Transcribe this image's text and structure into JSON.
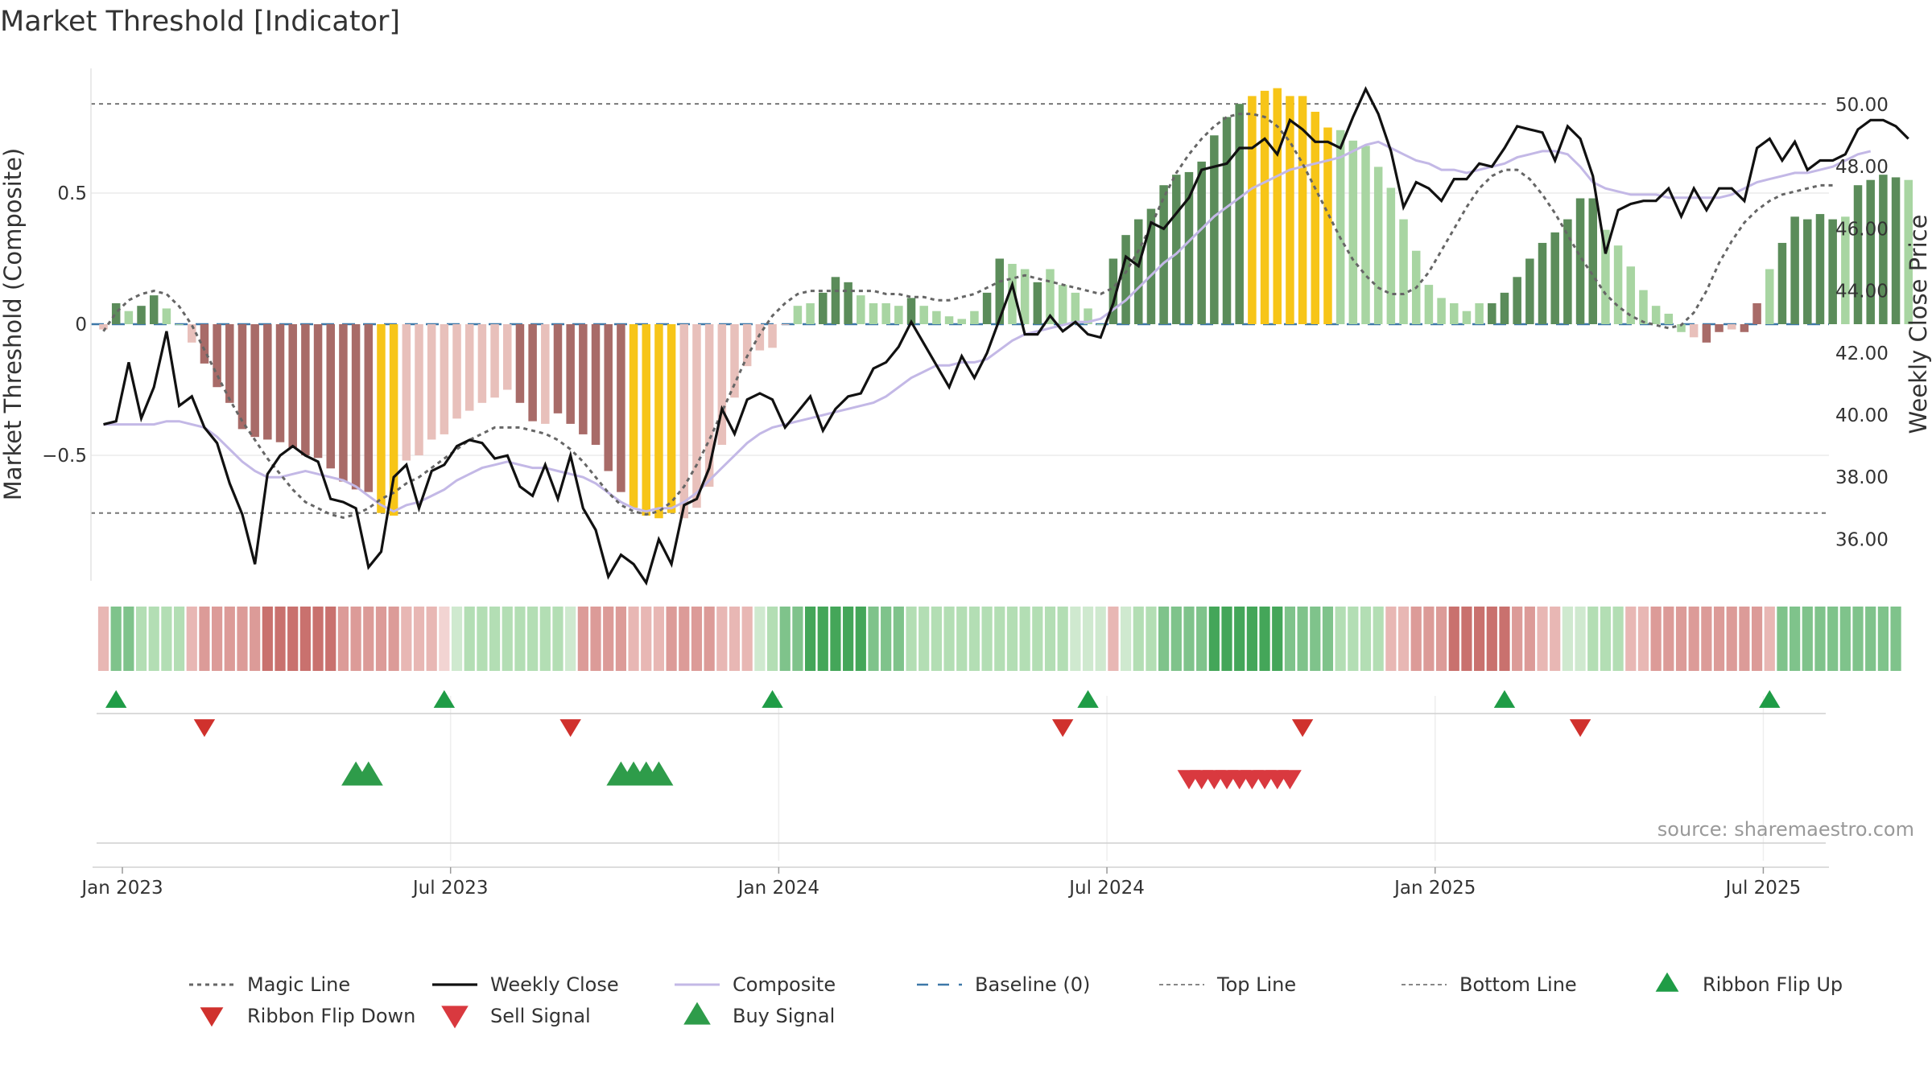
{
  "title": "Market Threshold [Indicator]",
  "source": "source: sharemaestro.com",
  "colors": {
    "strong_green": "#5b8c5a",
    "light_green": "#a8d5a2",
    "strong_red": "#a86b68",
    "light_red": "#e8c0bb",
    "yellow": "#f7c518",
    "weekly_close": "#111111",
    "composite": "#c3b8e6",
    "magic": "#666666",
    "baseline": "#3d78a8",
    "buy": "#2e9c4a",
    "sell": "#d9393f",
    "flip_up": "#1f9c46",
    "flip_down": "#d0312d"
  },
  "chart_data": {
    "type": "bar",
    "title": "Market Threshold [Indicator]",
    "ylabel_left": "Market Threshold (Composite)",
    "ylabel_right": "Weekly Close Price",
    "ylim_left": [
      -1.0,
      1.0
    ],
    "ylim_right": [
      34.4,
      51.8
    ],
    "left_ticks": [
      {
        "v": 0.5,
        "label": "0.5"
      },
      {
        "v": 0,
        "label": "0"
      },
      {
        "v": -0.5,
        "label": "−0.5"
      }
    ],
    "right_ticks": [
      {
        "v": 50,
        "label": "50.00"
      },
      {
        "v": 48,
        "label": "48.00"
      },
      {
        "v": 46,
        "label": "46.00"
      },
      {
        "v": 44,
        "label": "44.00"
      },
      {
        "v": 42,
        "label": "42.00"
      },
      {
        "v": 40,
        "label": "40.00"
      },
      {
        "v": 38,
        "label": "38.00"
      },
      {
        "v": 36,
        "label": "36.00"
      }
    ],
    "x_ticks": [
      {
        "i": 1.5,
        "label": "Jan 2023"
      },
      {
        "i": 27.5,
        "label": "Jul 2023"
      },
      {
        "i": 53.5,
        "label": "Jan 2024"
      },
      {
        "i": 79.5,
        "label": "Jul 2024"
      },
      {
        "i": 105.5,
        "label": "Jan 2025"
      },
      {
        "i": 131.5,
        "label": "Jul 2025"
      }
    ],
    "top_line": 0.84,
    "bottom_line": -0.72,
    "composite_bars": [
      -0.02,
      0.08,
      0.05,
      0.07,
      0.11,
      0.06,
      0.0,
      -0.07,
      -0.15,
      -0.24,
      -0.3,
      -0.4,
      -0.43,
      -0.44,
      -0.45,
      -0.47,
      -0.5,
      -0.51,
      -0.55,
      -0.6,
      -0.63,
      -0.64,
      -0.72,
      -0.73,
      -0.52,
      -0.5,
      -0.44,
      -0.42,
      -0.36,
      -0.33,
      -0.3,
      -0.28,
      -0.25,
      -0.3,
      -0.37,
      -0.38,
      -0.34,
      -0.38,
      -0.42,
      -0.46,
      -0.56,
      -0.64,
      -0.7,
      -0.73,
      -0.74,
      -0.72,
      -0.74,
      -0.7,
      -0.62,
      -0.46,
      -0.28,
      -0.16,
      -0.1,
      -0.09,
      0.0,
      0.07,
      0.08,
      0.12,
      0.18,
      0.16,
      0.11,
      0.08,
      0.08,
      0.07,
      0.1,
      0.07,
      0.05,
      0.03,
      0.02,
      0.05,
      0.12,
      0.25,
      0.23,
      0.21,
      0.16,
      0.21,
      0.15,
      0.12,
      0.06,
      0.0,
      0.25,
      0.34,
      0.4,
      0.44,
      0.53,
      0.57,
      0.58,
      0.62,
      0.72,
      0.79,
      0.84,
      0.87,
      0.89,
      0.9,
      0.87,
      0.87,
      0.81,
      0.75,
      0.74,
      0.7,
      0.68,
      0.6,
      0.52,
      0.4,
      0.28,
      0.15,
      0.1,
      0.08,
      0.05,
      0.08,
      0.08,
      0.12,
      0.18,
      0.25,
      0.31,
      0.35,
      0.4,
      0.48,
      0.48,
      0.36,
      0.3,
      0.22,
      0.13,
      0.07,
      0.04,
      -0.03,
      -0.05,
      -0.07,
      -0.03,
      -0.02,
      -0.03,
      0.08,
      0.21,
      0.31,
      0.41,
      0.4,
      0.42,
      0.4,
      0.41,
      0.53,
      0.55,
      0.57,
      0.56,
      0.55
    ],
    "bar_colors": [
      "lr",
      "sg",
      "lg",
      "sg",
      "sg",
      "lg",
      "lg",
      "lr",
      "sr",
      "sr",
      "sr",
      "sr",
      "sr",
      "sr",
      "sr",
      "sr",
      "sr",
      "sr",
      "sr",
      "sr",
      "sr",
      "sr",
      "y",
      "y",
      "lr",
      "lr",
      "lr",
      "lr",
      "lr",
      "lr",
      "lr",
      "lr",
      "lr",
      "sr",
      "sr",
      "lr",
      "sr",
      "sr",
      "sr",
      "sr",
      "sr",
      "sr",
      "y",
      "y",
      "y",
      "y",
      "lr",
      "lr",
      "lr",
      "lr",
      "lr",
      "lr",
      "lr",
      "lr",
      "lr",
      "lg",
      "lg",
      "sg",
      "sg",
      "sg",
      "lg",
      "lg",
      "lg",
      "lg",
      "sg",
      "lg",
      "lg",
      "lg",
      "lg",
      "lg",
      "sg",
      "sg",
      "lg",
      "lg",
      "sg",
      "lg",
      "lg",
      "lg",
      "lg",
      "lg",
      "sg",
      "sg",
      "sg",
      "sg",
      "sg",
      "sg",
      "sg",
      "sg",
      "sg",
      "sg",
      "sg",
      "y",
      "y",
      "y",
      "y",
      "y",
      "y",
      "y",
      "lg",
      "lg",
      "lg",
      "lg",
      "lg",
      "lg",
      "lg",
      "lg",
      "lg",
      "lg",
      "lg",
      "lg",
      "sg",
      "sg",
      "sg",
      "sg",
      "sg",
      "sg",
      "sg",
      "sg",
      "sg",
      "lg",
      "lg",
      "lg",
      "lg",
      "lg",
      "lg",
      "lg",
      "lr",
      "sr",
      "sr",
      "lr",
      "sr",
      "sr",
      "lg",
      "sg",
      "sg",
      "sg",
      "sg",
      "sg",
      "lg",
      "sg",
      "sg",
      "sg",
      "sg",
      "lg",
      "lg"
    ],
    "weekly_close": [
      39.7,
      39.8,
      41.7,
      39.9,
      40.9,
      42.7,
      40.3,
      40.6,
      39.6,
      39.1,
      37.8,
      36.8,
      35.2,
      38.1,
      38.7,
      39.0,
      38.7,
      38.5,
      37.3,
      37.2,
      37.0,
      35.1,
      35.6,
      38.0,
      38.4,
      37.0,
      38.2,
      38.4,
      39.0,
      39.2,
      39.1,
      38.6,
      38.7,
      37.7,
      37.4,
      38.4,
      37.3,
      38.7,
      37.0,
      36.3,
      34.8,
      35.5,
      35.2,
      34.6,
      36.0,
      35.2,
      37.1,
      37.3,
      38.3,
      40.2,
      39.4,
      40.5,
      40.7,
      40.5,
      39.6,
      40.1,
      40.6,
      39.5,
      40.2,
      40.6,
      40.7,
      41.5,
      41.7,
      42.2,
      43.0,
      42.3,
      41.6,
      40.9,
      41.9,
      41.2,
      42.0,
      43.1,
      44.2,
      42.6,
      42.6,
      43.2,
      42.7,
      43.0,
      42.6,
      42.5,
      43.6,
      45.1,
      44.8,
      46.2,
      46.0,
      46.5,
      47.0,
      47.9,
      48.0,
      48.1,
      48.6,
      48.6,
      48.9,
      48.4,
      49.5,
      49.2,
      48.8,
      48.8,
      48.6,
      49.6,
      50.5,
      49.7,
      48.5,
      46.7,
      47.5,
      47.3,
      46.9,
      47.6,
      47.6,
      48.1,
      48.0,
      48.6,
      49.3,
      49.2,
      49.1,
      48.2,
      49.3,
      48.9,
      47.7,
      45.2,
      46.6,
      46.8,
      46.9,
      46.9,
      47.3,
      46.4,
      47.3,
      46.6,
      47.3,
      47.3,
      46.9,
      48.6,
      48.9,
      48.2,
      48.8,
      47.9,
      48.2,
      48.2,
      48.4,
      49.2,
      49.5,
      49.5,
      49.3,
      48.9
    ],
    "composite": [
      39.7,
      39.7,
      39.7,
      39.7,
      39.7,
      39.8,
      39.8,
      39.7,
      39.6,
      39.3,
      38.9,
      38.5,
      38.2,
      38.0,
      38.0,
      38.1,
      38.2,
      38.1,
      38.0,
      37.9,
      37.7,
      37.4,
      37.1,
      36.9,
      37.1,
      37.2,
      37.4,
      37.6,
      37.9,
      38.1,
      38.3,
      38.4,
      38.5,
      38.4,
      38.3,
      38.3,
      38.2,
      38.1,
      38.0,
      37.8,
      37.5,
      37.2,
      37.0,
      36.9,
      37.0,
      37.0,
      37.2,
      37.5,
      37.9,
      38.3,
      38.7,
      39.1,
      39.4,
      39.6,
      39.7,
      39.8,
      39.9,
      40.0,
      40.1,
      40.2,
      40.3,
      40.4,
      40.6,
      40.9,
      41.2,
      41.4,
      41.6,
      41.6,
      41.7,
      41.7,
      41.8,
      42.1,
      42.4,
      42.6,
      42.7,
      42.8,
      42.9,
      43.0,
      43.0,
      43.1,
      43.4,
      43.7,
      44.1,
      44.5,
      44.9,
      45.2,
      45.6,
      46.0,
      46.4,
      46.7,
      47.0,
      47.3,
      47.5,
      47.7,
      47.9,
      48.0,
      48.1,
      48.2,
      48.3,
      48.5,
      48.7,
      48.8,
      48.6,
      48.4,
      48.2,
      48.1,
      47.9,
      47.9,
      47.8,
      47.9,
      48.0,
      48.1,
      48.3,
      48.4,
      48.5,
      48.5,
      48.4,
      48.0,
      47.5,
      47.3,
      47.2,
      47.1,
      47.1,
      47.1,
      47.0,
      47.0,
      47.0,
      47.0,
      47.0,
      47.1,
      47.3,
      47.5,
      47.6,
      47.7,
      47.8,
      47.8,
      47.9,
      48.0,
      48.2,
      48.4,
      48.5
    ],
    "magic_line": [
      42.7,
      43.3,
      43.7,
      43.9,
      44.0,
      43.9,
      43.5,
      42.9,
      42.1,
      41.3,
      40.5,
      39.8,
      39.2,
      38.6,
      38.1,
      37.6,
      37.2,
      37.0,
      36.8,
      36.7,
      36.8,
      37.0,
      37.3,
      37.5,
      37.8,
      38.0,
      38.3,
      38.6,
      38.9,
      39.2,
      39.4,
      39.6,
      39.6,
      39.6,
      39.5,
      39.4,
      39.2,
      38.9,
      38.5,
      38.0,
      37.5,
      37.1,
      36.9,
      36.8,
      36.9,
      37.2,
      37.7,
      38.4,
      39.2,
      40.1,
      41.0,
      41.9,
      42.6,
      43.2,
      43.6,
      43.9,
      44.0,
      44.0,
      44.0,
      44.0,
      44.0,
      44.0,
      43.9,
      43.9,
      43.8,
      43.8,
      43.7,
      43.7,
      43.8,
      43.9,
      44.1,
      44.3,
      44.4,
      44.5,
      44.4,
      44.3,
      44.2,
      44.1,
      44.0,
      43.9,
      44.1,
      44.6,
      45.3,
      46.1,
      47.0,
      47.8,
      48.4,
      48.9,
      49.3,
      49.6,
      49.7,
      49.7,
      49.6,
      49.3,
      48.8,
      48.1,
      47.3,
      46.5,
      45.7,
      45.0,
      44.5,
      44.1,
      43.9,
      43.9,
      44.1,
      44.6,
      45.3,
      46.0,
      46.7,
      47.3,
      47.7,
      47.9,
      47.9,
      47.6,
      47.1,
      46.5,
      45.8,
      45.1,
      44.5,
      43.9,
      43.5,
      43.2,
      43.0,
      42.9,
      42.8,
      42.9,
      43.3,
      44.0,
      44.9,
      45.6,
      46.2,
      46.6,
      46.9,
      47.1,
      47.2,
      47.3,
      47.4,
      47.4
    ],
    "signals": {
      "ribbon_flip_up": [
        1,
        27,
        53,
        78,
        111,
        132
      ],
      "ribbon_flip_down": [
        8,
        37,
        76,
        95,
        117
      ],
      "buy": [
        20,
        21,
        41,
        42,
        43,
        44
      ],
      "sell": [
        86,
        87,
        88,
        89,
        90,
        91,
        92,
        93,
        94
      ]
    },
    "ribbon": [
      "lr",
      "mg",
      "mg",
      "lg",
      "lg",
      "lg",
      "lg",
      "lr",
      "mr",
      "mr",
      "mr",
      "mr",
      "mr",
      "dr",
      "dr",
      "dr",
      "dr",
      "dr",
      "dr",
      "mr",
      "mr",
      "mr",
      "mr",
      "mr",
      "lr",
      "lr",
      "lr",
      "vlr",
      "vlg",
      "lg",
      "lg",
      "lg",
      "lg",
      "lg",
      "lg",
      "lg",
      "lg",
      "vlg",
      "mr",
      "mr",
      "mr",
      "mr",
      "lr",
      "lr",
      "lr",
      "mr",
      "mr",
      "mr",
      "mr",
      "lr",
      "lr",
      "lr",
      "vlg",
      "lg",
      "mg",
      "mg",
      "dg",
      "dg",
      "dg",
      "dg",
      "dg",
      "mg",
      "mg",
      "mg",
      "lg",
      "lg",
      "lg",
      "lg",
      "lg",
      "lg",
      "lg",
      "lg",
      "lg",
      "lg",
      "lg",
      "lg",
      "lg",
      "vlg",
      "vlg",
      "vlg",
      "lr",
      "vlg",
      "lg",
      "lg",
      "mg",
      "mg",
      "mg",
      "mg",
      "dg",
      "dg",
      "dg",
      "dg",
      "dg",
      "dg",
      "mg",
      "mg",
      "mg",
      "mg",
      "lg",
      "lg",
      "lg",
      "lg",
      "lr",
      "lr",
      "mr",
      "mr",
      "mr",
      "dr",
      "dr",
      "dr",
      "dr",
      "dr",
      "mr",
      "mr",
      "lr",
      "lr",
      "vlg",
      "vlg",
      "lg",
      "lg",
      "lg",
      "lr",
      "lr",
      "mr",
      "mr",
      "mr",
      "mr",
      "mr",
      "mr",
      "mr",
      "mr",
      "mr",
      "lr",
      "mg",
      "mg",
      "mg",
      "mg",
      "mg",
      "mg",
      "mg",
      "mg",
      "mg",
      "mg"
    ],
    "legend": [
      {
        "key": "magic",
        "label": "Magic Line"
      },
      {
        "key": "weekly",
        "label": "Weekly Close"
      },
      {
        "key": "composite",
        "label": "Composite"
      },
      {
        "key": "baseline",
        "label": "Baseline (0)"
      },
      {
        "key": "top",
        "label": "Top Line"
      },
      {
        "key": "bottom",
        "label": "Bottom Line"
      },
      {
        "key": "flip_up",
        "label": "Ribbon Flip Up"
      },
      {
        "key": "flip_down",
        "label": "Ribbon Flip Down"
      },
      {
        "key": "sell",
        "label": "Sell Signal"
      },
      {
        "key": "buy",
        "label": "Buy Signal"
      }
    ]
  }
}
